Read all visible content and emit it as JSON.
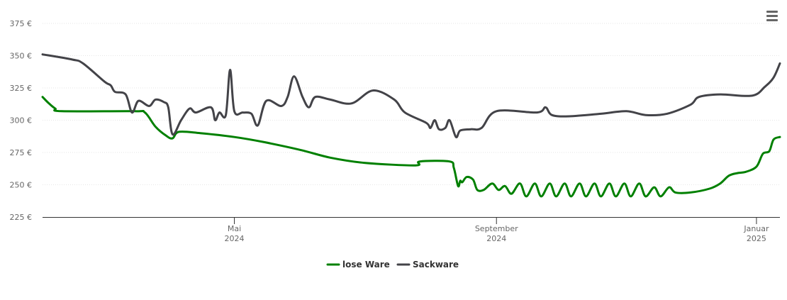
{
  "colors": {
    "lose": "#008000",
    "sack": "#434348",
    "grid": "#e6e6e6",
    "axis": "#333333",
    "text": "#666666"
  },
  "menu": {
    "icon": "hamburger-menu-icon"
  },
  "chart_data": {
    "type": "line",
    "title": "",
    "xlabel": "",
    "ylabel": "",
    "ylim": [
      225,
      375
    ],
    "y_ticks": [
      {
        "value": 225,
        "label": "225 €"
      },
      {
        "value": 250,
        "label": "250 €"
      },
      {
        "value": 275,
        "label": "275 €"
      },
      {
        "value": 300,
        "label": "300 €"
      },
      {
        "value": 325,
        "label": "325 €"
      },
      {
        "value": 350,
        "label": "350 €"
      },
      {
        "value": 375,
        "label": "375 €"
      }
    ],
    "xlim": [
      "2024-02-01",
      "2025-01-12"
    ],
    "x_ticks": [
      {
        "date": "2024-05-01",
        "month": "Mai",
        "year": "2024"
      },
      {
        "date": "2024-09-01",
        "month": "September",
        "year": "2024"
      },
      {
        "date": "2025-01-01",
        "month": "Januar",
        "year": "2025"
      }
    ],
    "grid": true,
    "legend": "bottom-center",
    "series": [
      {
        "name": "lose Ware",
        "color": "#008000",
        "points": [
          [
            "2024-02-01",
            318
          ],
          [
            "2024-02-04",
            313
          ],
          [
            "2024-02-07",
            309
          ],
          [
            "2024-02-10",
            307
          ],
          [
            "2024-03-15",
            307
          ],
          [
            "2024-03-20",
            306
          ],
          [
            "2024-03-25",
            295
          ],
          [
            "2024-03-30",
            288
          ],
          [
            "2024-04-02",
            286
          ],
          [
            "2024-04-05",
            291
          ],
          [
            "2024-04-15",
            290
          ],
          [
            "2024-05-01",
            287
          ],
          [
            "2024-05-15",
            283
          ],
          [
            "2024-06-01",
            277
          ],
          [
            "2024-06-15",
            271
          ],
          [
            "2024-07-01",
            267
          ],
          [
            "2024-07-25",
            265
          ],
          [
            "2024-07-27",
            268
          ],
          [
            "2024-08-10",
            268
          ],
          [
            "2024-08-12",
            263
          ],
          [
            "2024-08-14",
            249
          ],
          [
            "2024-08-15",
            253
          ],
          [
            "2024-08-16",
            252
          ],
          [
            "2024-08-18",
            256
          ],
          [
            "2024-08-21",
            254
          ],
          [
            "2024-08-23",
            246
          ],
          [
            "2024-08-26",
            246
          ],
          [
            "2024-08-30",
            251
          ],
          [
            "2024-09-02",
            246
          ],
          [
            "2024-09-05",
            249
          ],
          [
            "2024-09-08",
            243
          ],
          [
            "2024-09-12",
            251
          ],
          [
            "2024-09-15",
            241
          ],
          [
            "2024-09-19",
            251
          ],
          [
            "2024-09-22",
            241
          ],
          [
            "2024-09-26",
            251
          ],
          [
            "2024-09-29",
            241
          ],
          [
            "2024-10-03",
            251
          ],
          [
            "2024-10-06",
            241
          ],
          [
            "2024-10-10",
            251
          ],
          [
            "2024-10-13",
            241
          ],
          [
            "2024-10-17",
            251
          ],
          [
            "2024-10-20",
            241
          ],
          [
            "2024-10-24",
            251
          ],
          [
            "2024-10-27",
            241
          ],
          [
            "2024-10-31",
            251
          ],
          [
            "2024-11-03",
            241
          ],
          [
            "2024-11-07",
            251
          ],
          [
            "2024-11-10",
            241
          ],
          [
            "2024-11-14",
            248
          ],
          [
            "2024-11-17",
            241
          ],
          [
            "2024-11-21",
            248
          ],
          [
            "2024-11-24",
            244
          ],
          [
            "2024-12-01",
            244
          ],
          [
            "2024-12-10",
            247
          ],
          [
            "2024-12-15",
            251
          ],
          [
            "2024-12-19",
            257
          ],
          [
            "2024-12-23",
            259
          ],
          [
            "2024-12-27",
            260
          ],
          [
            "2025-01-01",
            264
          ],
          [
            "2025-01-04",
            274
          ],
          [
            "2025-01-07",
            276
          ],
          [
            "2025-01-09",
            285
          ],
          [
            "2025-01-12",
            287
          ]
        ]
      },
      {
        "name": "Sackware",
        "color": "#434348",
        "points": [
          [
            "2024-02-01",
            351
          ],
          [
            "2024-02-15",
            347
          ],
          [
            "2024-02-20",
            344
          ],
          [
            "2024-03-01",
            330
          ],
          [
            "2024-03-04",
            327
          ],
          [
            "2024-03-06",
            322
          ],
          [
            "2024-03-11",
            320
          ],
          [
            "2024-03-14",
            306
          ],
          [
            "2024-03-17",
            315
          ],
          [
            "2024-03-22",
            311
          ],
          [
            "2024-03-25",
            316
          ],
          [
            "2024-03-29",
            314
          ],
          [
            "2024-03-31",
            310
          ],
          [
            "2024-04-02",
            289
          ],
          [
            "2024-04-06",
            300
          ],
          [
            "2024-04-10",
            309
          ],
          [
            "2024-04-13",
            306
          ],
          [
            "2024-04-20",
            310
          ],
          [
            "2024-04-22",
            300
          ],
          [
            "2024-04-24",
            306
          ],
          [
            "2024-04-27",
            304
          ],
          [
            "2024-04-29",
            339
          ],
          [
            "2024-05-01",
            307
          ],
          [
            "2024-05-05",
            306
          ],
          [
            "2024-05-09",
            305
          ],
          [
            "2024-05-12",
            296
          ],
          [
            "2024-05-16",
            315
          ],
          [
            "2024-05-23",
            311
          ],
          [
            "2024-05-26",
            318
          ],
          [
            "2024-05-29",
            334
          ],
          [
            "2024-06-02",
            318
          ],
          [
            "2024-06-05",
            310
          ],
          [
            "2024-06-08",
            318
          ],
          [
            "2024-06-15",
            316
          ],
          [
            "2024-06-25",
            313
          ],
          [
            "2024-07-05",
            323
          ],
          [
            "2024-07-15",
            316
          ],
          [
            "2024-07-20",
            306
          ],
          [
            "2024-07-30",
            298
          ],
          [
            "2024-08-01",
            294
          ],
          [
            "2024-08-03",
            300
          ],
          [
            "2024-08-05",
            293
          ],
          [
            "2024-08-08",
            294
          ],
          [
            "2024-08-10",
            300
          ],
          [
            "2024-08-13",
            287
          ],
          [
            "2024-08-15",
            292
          ],
          [
            "2024-08-20",
            293
          ],
          [
            "2024-08-25",
            294
          ],
          [
            "2024-09-01",
            307
          ],
          [
            "2024-09-20",
            306
          ],
          [
            "2024-09-24",
            310
          ],
          [
            "2024-09-27",
            304
          ],
          [
            "2024-10-05",
            303
          ],
          [
            "2024-10-20",
            305
          ],
          [
            "2024-11-01",
            307
          ],
          [
            "2024-11-10",
            304
          ],
          [
            "2024-11-20",
            305
          ],
          [
            "2024-12-01",
            312
          ],
          [
            "2024-12-05",
            318
          ],
          [
            "2024-12-15",
            320
          ],
          [
            "2024-12-30",
            319
          ],
          [
            "2025-01-05",
            326
          ],
          [
            "2025-01-09",
            333
          ],
          [
            "2025-01-12",
            344
          ]
        ]
      }
    ]
  }
}
